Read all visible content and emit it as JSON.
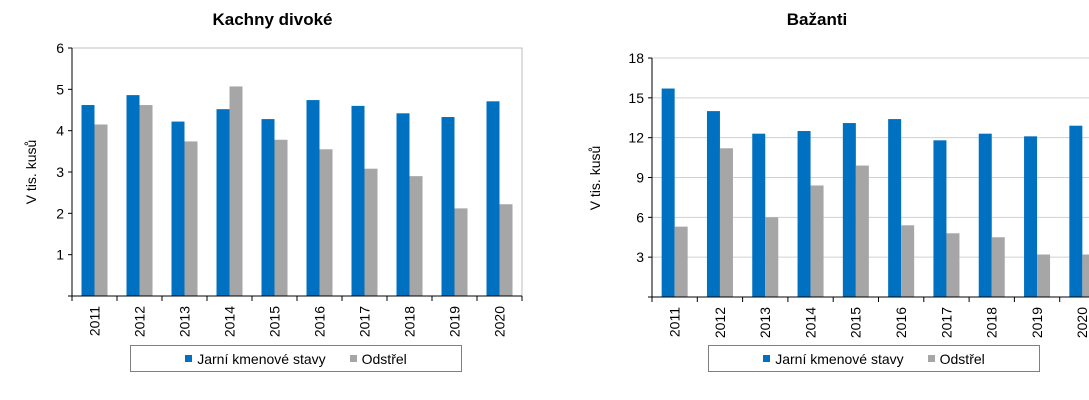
{
  "chart_data": [
    {
      "type": "bar",
      "title": "Kachny divoké",
      "ylabel": "V tis. kusů",
      "xlabel": "",
      "categories": [
        "2011",
        "2012",
        "2013",
        "2014",
        "2015",
        "2016",
        "2017",
        "2018",
        "2019",
        "2020"
      ],
      "series": [
        {
          "name": "Jarní kmenové stavy",
          "color": "#0070c0",
          "values": [
            4.62,
            4.86,
            4.22,
            4.52,
            4.28,
            4.74,
            4.6,
            4.42,
            4.33,
            4.71
          ]
        },
        {
          "name": "Odstřel",
          "color": "#a6a6a6",
          "values": [
            4.15,
            4.62,
            3.74,
            5.07,
            3.78,
            3.55,
            3.08,
            2.9,
            2.12,
            2.22
          ]
        }
      ],
      "ylim": [
        0,
        6
      ],
      "yticks": [
        1,
        2,
        3,
        4,
        5,
        6
      ],
      "grid": false,
      "legend_position": "bottom"
    },
    {
      "type": "bar",
      "title": "Bažanti",
      "ylabel": "V tis. kusů",
      "xlabel": "",
      "categories": [
        "2011",
        "2012",
        "2013",
        "2014",
        "2015",
        "2016",
        "2017",
        "2018",
        "2019",
        "2020"
      ],
      "series": [
        {
          "name": "Jarní kmenové stavy",
          "color": "#0070c0",
          "values": [
            15.7,
            14.0,
            12.3,
            12.5,
            13.1,
            13.4,
            11.8,
            12.3,
            12.1,
            12.9
          ]
        },
        {
          "name": "Odstřel",
          "color": "#a6a6a6",
          "values": [
            5.3,
            11.2,
            6.0,
            8.4,
            9.9,
            5.4,
            4.8,
            4.5,
            3.2,
            3.2
          ]
        }
      ],
      "ylim": [
        0,
        18
      ],
      "yticks": [
        3,
        6,
        9,
        12,
        15,
        18
      ],
      "grid": true,
      "legend_position": "bottom"
    }
  ]
}
